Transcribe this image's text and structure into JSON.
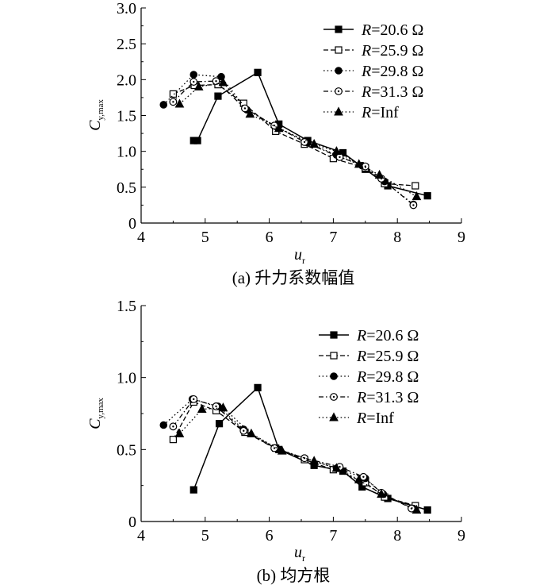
{
  "chart_data": [
    {
      "type": "line",
      "caption": "(a) 升力系数幅值",
      "xlabel_main": "u",
      "xlabel_sub": "r",
      "ylabel_main": "C",
      "ylabel_sub": "y,max",
      "xlim": [
        4,
        9
      ],
      "ylim": [
        0,
        3
      ],
      "xticks": [
        "4",
        "5",
        "6",
        "7",
        "8",
        "9"
      ],
      "yticks": [
        "0",
        "0.5",
        "1.0",
        "1.5",
        "2.0",
        "2.5",
        "3.0"
      ],
      "grid": false,
      "legend_position": "top-right",
      "series": [
        {
          "name_italic": "R",
          "name_rest": "=20.6 Ω",
          "marker": "square-filled",
          "dash": "solid",
          "x": [
            4.82,
            4.88,
            5.2,
            5.82,
            6.15,
            6.6,
            7.15,
            7.5,
            7.85,
            8.47
          ],
          "y": [
            1.15,
            1.15,
            1.77,
            2.1,
            1.38,
            1.15,
            0.98,
            0.75,
            0.52,
            0.38
          ]
        },
        {
          "name_italic": "R",
          "name_rest": "=25.9 Ω",
          "marker": "square-open",
          "dash": "dashed",
          "x": [
            4.5,
            4.83,
            5.2,
            5.6,
            6.1,
            6.55,
            7.0,
            7.5,
            7.8,
            8.28
          ],
          "y": [
            1.8,
            1.92,
            1.93,
            1.67,
            1.28,
            1.1,
            0.9,
            0.77,
            0.55,
            0.52
          ]
        },
        {
          "name_italic": "R",
          "name_rest": "=29.8 Ω",
          "marker": "circle-filled",
          "dash": "dotted",
          "x": [
            4.35,
            4.82,
            5.25,
            5.65,
            6.1,
            6.6,
            7.05,
            7.45,
            7.8,
            8.25
          ],
          "y": [
            1.65,
            2.07,
            2.04,
            1.58,
            1.35,
            1.12,
            0.95,
            0.8,
            0.58,
            0.26
          ]
        },
        {
          "name_italic": "R",
          "name_rest": "=31.3 Ω",
          "marker": "circle-open",
          "dash": "dashdot",
          "x": [
            4.5,
            4.82,
            5.17,
            5.62,
            6.08,
            6.55,
            7.1,
            7.5,
            7.75,
            8.25
          ],
          "y": [
            1.69,
            1.97,
            1.98,
            1.6,
            1.36,
            1.13,
            0.92,
            0.79,
            0.62,
            0.25
          ]
        },
        {
          "name_italic": "R",
          "name_rest": "=Inf",
          "marker": "triangle-filled",
          "dash": "dotted",
          "x": [
            4.6,
            4.9,
            5.28,
            5.7,
            6.15,
            6.7,
            7.05,
            7.4,
            7.72,
            8.3
          ],
          "y": [
            1.66,
            1.9,
            1.96,
            1.52,
            1.32,
            1.1,
            1.0,
            0.82,
            0.67,
            0.37
          ]
        }
      ]
    },
    {
      "type": "line",
      "caption": "(b) 均方根",
      "xlabel_main": "u",
      "xlabel_sub": "r",
      "ylabel_main": "C",
      "ylabel_sub": "y,max",
      "xlim": [
        4,
        9
      ],
      "ylim": [
        0,
        1.5
      ],
      "xticks": [
        "4",
        "5",
        "6",
        "7",
        "8",
        "9"
      ],
      "yticks": [
        "0",
        "0.5",
        "1.0",
        "1.5"
      ],
      "grid": false,
      "legend_position": "top-right",
      "series": [
        {
          "name_italic": "R",
          "name_rest": "=20.6 Ω",
          "marker": "square-filled",
          "dash": "solid",
          "x": [
            4.82,
            5.22,
            5.82,
            6.15,
            6.7,
            7.15,
            7.45,
            7.85,
            8.47
          ],
          "y": [
            0.22,
            0.68,
            0.93,
            0.5,
            0.39,
            0.35,
            0.24,
            0.16,
            0.08
          ]
        },
        {
          "name_italic": "R",
          "name_rest": "=25.9 Ω",
          "marker": "square-open",
          "dash": "dashed",
          "x": [
            4.5,
            4.82,
            5.17,
            5.62,
            6.1,
            6.55,
            7.0,
            7.5,
            7.8,
            8.28
          ],
          "y": [
            0.57,
            0.83,
            0.77,
            0.62,
            0.51,
            0.43,
            0.36,
            0.27,
            0.17,
            0.11
          ]
        },
        {
          "name_italic": "R",
          "name_rest": "=29.8 Ω",
          "marker": "circle-filled",
          "dash": "dotted",
          "x": [
            4.35,
            4.8,
            5.2,
            5.6,
            6.1,
            6.55,
            7.05,
            7.5,
            7.78,
            8.25
          ],
          "y": [
            0.67,
            0.85,
            0.8,
            0.64,
            0.51,
            0.44,
            0.37,
            0.3,
            0.19,
            0.09
          ]
        },
        {
          "name_italic": "R",
          "name_rest": "=31.3 Ω",
          "marker": "circle-open",
          "dash": "dashdot",
          "x": [
            4.5,
            4.82,
            5.17,
            5.6,
            6.08,
            6.55,
            7.1,
            7.47,
            7.75,
            8.22
          ],
          "y": [
            0.66,
            0.85,
            0.8,
            0.63,
            0.51,
            0.44,
            0.38,
            0.31,
            0.2,
            0.09
          ]
        },
        {
          "name_italic": "R",
          "name_rest": "=Inf",
          "marker": "triangle-filled",
          "dash": "dotted",
          "x": [
            4.6,
            4.95,
            5.28,
            5.72,
            6.2,
            6.7,
            7.05,
            7.4,
            7.75,
            8.3
          ],
          "y": [
            0.61,
            0.78,
            0.79,
            0.61,
            0.49,
            0.42,
            0.37,
            0.29,
            0.19,
            0.08
          ]
        }
      ]
    }
  ]
}
